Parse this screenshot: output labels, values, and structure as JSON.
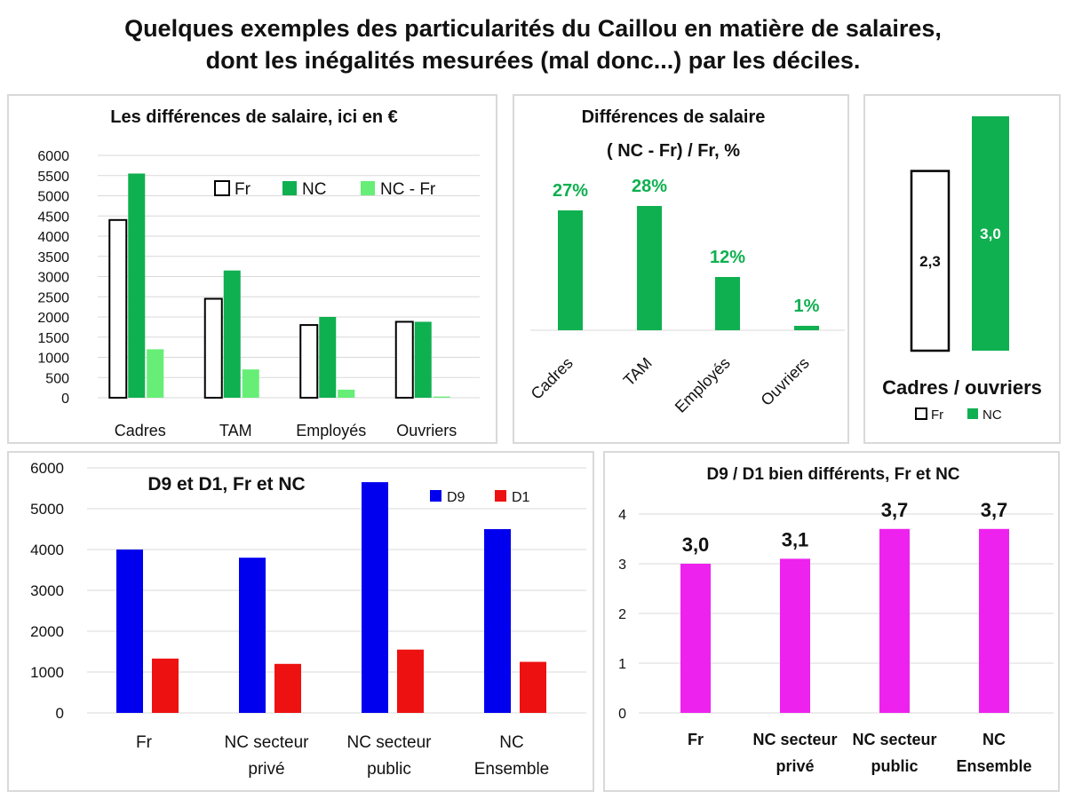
{
  "title": {
    "line1": "Quelques exemples des particularités du Caillou en matière de salaires,",
    "line2": "dont les inégalités mesurées (mal donc...) par les déciles."
  },
  "colors": {
    "fr_fill": "#ffffff",
    "fr_stroke": "#000000",
    "nc": "#0fb050",
    "nc_fr": "#66ee77",
    "d9": "#0000ee",
    "d1": "#ee1111",
    "ratio": "#ee22ee",
    "pct_label": "#0fb050"
  },
  "chart_data": [
    {
      "id": "salary_diff_eur",
      "type": "bar",
      "title": "Les différences de salaire, ici en €",
      "categories": [
        "Cadres",
        "TAM",
        "Employés",
        "Ouvriers"
      ],
      "series": [
        {
          "name": "Fr",
          "values": [
            4400,
            2450,
            1800,
            1880
          ]
        },
        {
          "name": "NC",
          "values": [
            5550,
            3150,
            2000,
            1880
          ]
        },
        {
          "name": "NC - Fr",
          "values": [
            1200,
            700,
            200,
            30
          ]
        }
      ],
      "ylim": [
        0,
        6000
      ],
      "yticks": [
        "0",
        "500",
        "1000",
        "1500",
        "2000",
        "2500",
        "3000",
        "3500",
        "4000",
        "4500",
        "5000",
        "5500",
        "6000"
      ],
      "grid": true,
      "legend_position": "top-right"
    },
    {
      "id": "salary_diff_pct",
      "type": "bar",
      "title_line1": "Différences de salaire",
      "title_line2": "( NC - Fr) / Fr, %",
      "categories": [
        "Cadres",
        "TAM",
        "Employés",
        "Ouvriers"
      ],
      "values": [
        27,
        28,
        12,
        1
      ],
      "labels": [
        "27%",
        "28%",
        "12%",
        "1%"
      ]
    },
    {
      "id": "cadres_ouvriers",
      "type": "bar",
      "title": "Cadres / ouvriers",
      "categories": [
        "Fr",
        "NC"
      ],
      "values": [
        2.3,
        3.0
      ],
      "labels": [
        "2,3",
        "3,0"
      ],
      "legend": [
        "Fr",
        "NC"
      ],
      "legend_position": "bottom"
    },
    {
      "id": "d9_d1",
      "type": "bar",
      "title": "D9 et D1, Fr et NC",
      "categories": [
        [
          "Fr"
        ],
        [
          "NC secteur",
          "privé"
        ],
        [
          "NC secteur",
          "public"
        ],
        [
          "NC",
          "Ensemble"
        ]
      ],
      "series": [
        {
          "name": "D9",
          "values": [
            4000,
            3800,
            5650,
            4500
          ]
        },
        {
          "name": "D1",
          "values": [
            1330,
            1200,
            1550,
            1250
          ]
        }
      ],
      "ylim": [
        0,
        6000
      ],
      "yticks": [
        "0",
        "1000",
        "2000",
        "3000",
        "4000",
        "5000",
        "6000"
      ],
      "grid": true,
      "legend_position": "top-right"
    },
    {
      "id": "d9_over_d1",
      "type": "bar",
      "title": "D9 / D1 bien différents, Fr et NC",
      "categories": [
        [
          "Fr"
        ],
        [
          "NC secteur",
          "privé"
        ],
        [
          "NC secteur",
          "public"
        ],
        [
          "NC",
          "Ensemble"
        ]
      ],
      "values": [
        3.0,
        3.1,
        3.7,
        3.7
      ],
      "labels": [
        "3,0",
        "3,1",
        "3,7",
        "3,7"
      ],
      "ylim": [
        0,
        4
      ],
      "yticks": [
        "0",
        "1",
        "2",
        "3",
        "4"
      ],
      "grid": true
    }
  ]
}
